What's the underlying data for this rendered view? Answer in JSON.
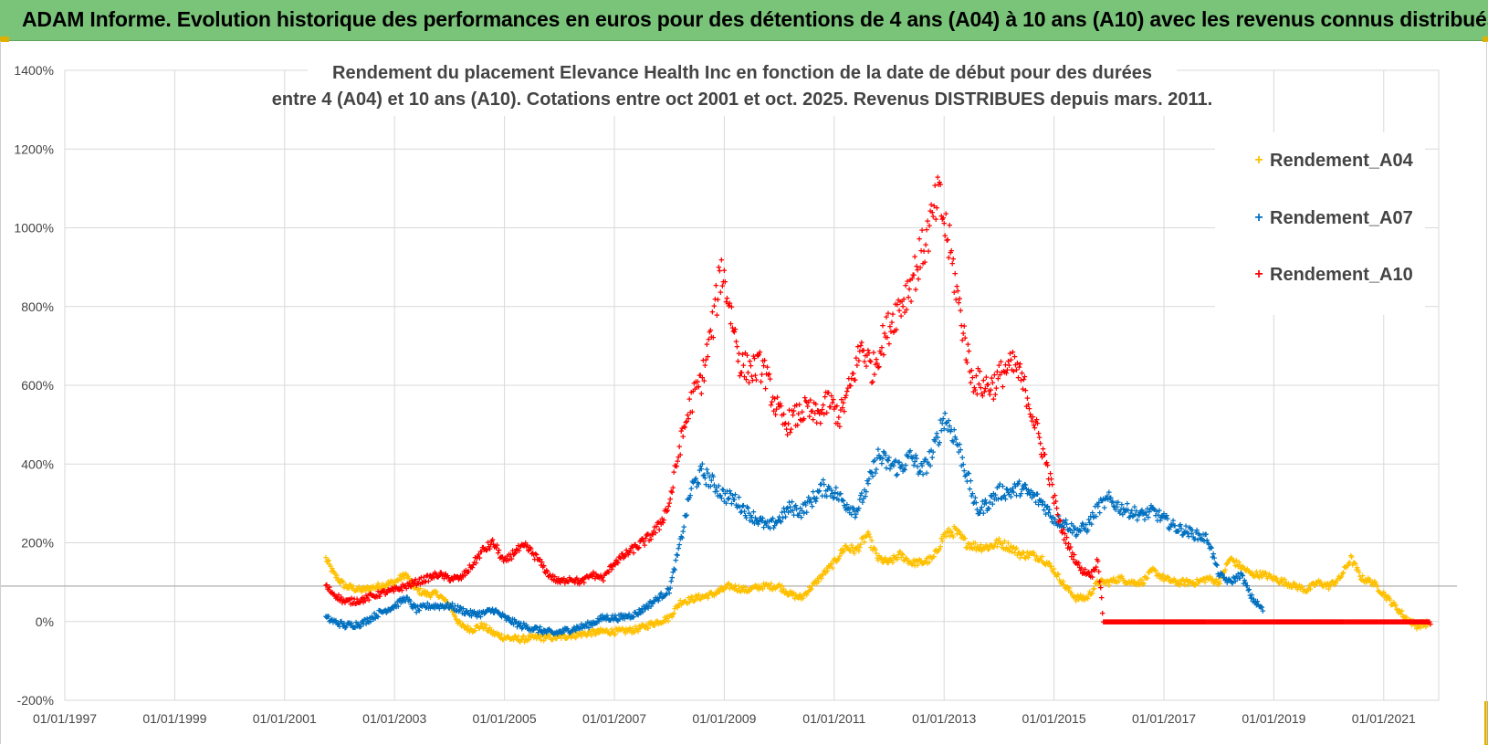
{
  "banner": {
    "title": "ADAM Informe. Evolution historique des performances en euros pour des détentions de 4 ans (A04) à 10 ans (A10) avec les revenus connus distribués"
  },
  "colors": {
    "banner": "#7ac47a",
    "a04": "#ffc000",
    "a07": "#0070c0",
    "a10": "#ff0000",
    "grid": "#d9d9d9",
    "baseline": "#a6a6a6"
  },
  "chart_data": {
    "type": "scatter",
    "title_lines": [
      "Rendement du placement Elevance Health Inc en fonction de la date de début pour des durées",
      "entre 4 (A04) et 10 ans (A10). Cotations entre oct 2001 et oct. 2025. Revenus DISTRIBUES depuis mars. 2011."
    ],
    "xlabel": "",
    "ylabel": "",
    "xlim": [
      1997.0,
      2022.0
    ],
    "ylim": [
      -200,
      1400
    ],
    "ytick_values": [
      -200,
      0,
      200,
      400,
      600,
      800,
      1000,
      1200,
      1400
    ],
    "ytick_labels": [
      "-200%",
      "0%",
      "200%",
      "400%",
      "600%",
      "800%",
      "1000%",
      "1200%",
      "1400%"
    ],
    "xtick_values": [
      1997,
      1999,
      2001,
      2003,
      2005,
      2007,
      2009,
      2011,
      2013,
      2015,
      2017,
      2019,
      2021
    ],
    "xtick_labels": [
      "01/01/1997",
      "01/01/1999",
      "01/01/2001",
      "01/01/2003",
      "01/01/2005",
      "01/01/2007",
      "01/01/2009",
      "01/01/2011",
      "01/01/2013",
      "01/01/2015",
      "01/01/2017",
      "01/01/2019",
      "01/01/2021"
    ],
    "reference_line_value": 90,
    "legend_position": "top-right",
    "series": [
      {
        "name": "Rendement_A04",
        "color": "#ffc000",
        "points": [
          [
            2001.75,
            160
          ],
          [
            2001.9,
            120
          ],
          [
            2002.1,
            90
          ],
          [
            2002.4,
            80
          ],
          [
            2002.7,
            90
          ],
          [
            2003.0,
            100
          ],
          [
            2003.2,
            120
          ],
          [
            2003.4,
            80
          ],
          [
            2003.6,
            70
          ],
          [
            2003.8,
            70
          ],
          [
            2004.0,
            40
          ],
          [
            2004.2,
            -10
          ],
          [
            2004.4,
            -20
          ],
          [
            2004.6,
            -10
          ],
          [
            2004.8,
            -30
          ],
          [
            2005.0,
            -40
          ],
          [
            2005.3,
            -45
          ],
          [
            2005.6,
            -40
          ],
          [
            2005.9,
            -40
          ],
          [
            2006.2,
            -35
          ],
          [
            2006.5,
            -30
          ],
          [
            2006.8,
            -25
          ],
          [
            2007.1,
            -25
          ],
          [
            2007.4,
            -20
          ],
          [
            2007.7,
            -5
          ],
          [
            2008.0,
            10
          ],
          [
            2008.2,
            50
          ],
          [
            2008.5,
            60
          ],
          [
            2008.8,
            70
          ],
          [
            2009.1,
            90
          ],
          [
            2009.4,
            80
          ],
          [
            2009.7,
            90
          ],
          [
            2010.0,
            90
          ],
          [
            2010.2,
            70
          ],
          [
            2010.4,
            60
          ],
          [
            2010.6,
            90
          ],
          [
            2010.8,
            120
          ],
          [
            2011.0,
            150
          ],
          [
            2011.2,
            190
          ],
          [
            2011.4,
            180
          ],
          [
            2011.6,
            220
          ],
          [
            2011.8,
            160
          ],
          [
            2012.0,
            150
          ],
          [
            2012.2,
            170
          ],
          [
            2012.4,
            150
          ],
          [
            2012.6,
            150
          ],
          [
            2012.8,
            160
          ],
          [
            2013.0,
            220
          ],
          [
            2013.2,
            230
          ],
          [
            2013.4,
            200
          ],
          [
            2013.6,
            190
          ],
          [
            2013.8,
            190
          ],
          [
            2014.0,
            200
          ],
          [
            2014.2,
            190
          ],
          [
            2014.4,
            170
          ],
          [
            2014.6,
            170
          ],
          [
            2014.8,
            160
          ],
          [
            2015.0,
            130
          ],
          [
            2015.2,
            90
          ],
          [
            2015.4,
            60
          ],
          [
            2015.6,
            60
          ],
          [
            2015.8,
            100
          ],
          [
            2016.0,
            100
          ],
          [
            2016.2,
            110
          ],
          [
            2016.4,
            100
          ],
          [
            2016.6,
            100
          ],
          [
            2016.8,
            130
          ],
          [
            2017.0,
            110
          ],
          [
            2017.2,
            100
          ],
          [
            2017.4,
            100
          ],
          [
            2017.6,
            100
          ],
          [
            2017.8,
            110
          ],
          [
            2018.0,
            100
          ],
          [
            2018.2,
            160
          ],
          [
            2018.4,
            140
          ],
          [
            2018.6,
            120
          ],
          [
            2018.8,
            120
          ],
          [
            2019.0,
            110
          ],
          [
            2019.2,
            100
          ],
          [
            2019.4,
            90
          ],
          [
            2019.6,
            80
          ],
          [
            2019.8,
            100
          ],
          [
            2020.0,
            90
          ],
          [
            2020.2,
            110
          ],
          [
            2020.4,
            160
          ],
          [
            2020.6,
            110
          ],
          [
            2020.8,
            100
          ],
          [
            2021.0,
            70
          ],
          [
            2021.2,
            40
          ],
          [
            2021.4,
            10
          ],
          [
            2021.6,
            -10
          ],
          [
            2021.8,
            -5
          ]
        ]
      },
      {
        "name": "Rendement_A07",
        "color": "#0070c0",
        "points": [
          [
            2001.75,
            10
          ],
          [
            2001.9,
            0
          ],
          [
            2002.1,
            -10
          ],
          [
            2002.4,
            -5
          ],
          [
            2002.7,
            20
          ],
          [
            2003.0,
            40
          ],
          [
            2003.2,
            60
          ],
          [
            2003.4,
            30
          ],
          [
            2003.6,
            40
          ],
          [
            2003.8,
            40
          ],
          [
            2004.0,
            40
          ],
          [
            2004.2,
            30
          ],
          [
            2004.4,
            20
          ],
          [
            2004.6,
            20
          ],
          [
            2004.8,
            30
          ],
          [
            2005.0,
            10
          ],
          [
            2005.3,
            -10
          ],
          [
            2005.6,
            -20
          ],
          [
            2005.9,
            -30
          ],
          [
            2006.2,
            -20
          ],
          [
            2006.5,
            -10
          ],
          [
            2006.8,
            10
          ],
          [
            2007.1,
            10
          ],
          [
            2007.4,
            20
          ],
          [
            2007.7,
            50
          ],
          [
            2008.0,
            80
          ],
          [
            2008.2,
            200
          ],
          [
            2008.4,
            340
          ],
          [
            2008.6,
            380
          ],
          [
            2008.8,
            350
          ],
          [
            2009.0,
            320
          ],
          [
            2009.2,
            310
          ],
          [
            2009.4,
            280
          ],
          [
            2009.6,
            260
          ],
          [
            2009.8,
            240
          ],
          [
            2010.0,
            260
          ],
          [
            2010.2,
            290
          ],
          [
            2010.4,
            280
          ],
          [
            2010.6,
            310
          ],
          [
            2010.8,
            340
          ],
          [
            2011.0,
            330
          ],
          [
            2011.2,
            300
          ],
          [
            2011.4,
            280
          ],
          [
            2011.6,
            340
          ],
          [
            2011.8,
            420
          ],
          [
            2012.0,
            400
          ],
          [
            2012.2,
            390
          ],
          [
            2012.4,
            420
          ],
          [
            2012.6,
            380
          ],
          [
            2012.8,
            430
          ],
          [
            2013.0,
            520
          ],
          [
            2013.2,
            470
          ],
          [
            2013.4,
            380
          ],
          [
            2013.6,
            280
          ],
          [
            2013.8,
            300
          ],
          [
            2014.0,
            330
          ],
          [
            2014.2,
            330
          ],
          [
            2014.4,
            340
          ],
          [
            2014.6,
            320
          ],
          [
            2014.8,
            300
          ],
          [
            2015.0,
            260
          ],
          [
            2015.2,
            250
          ],
          [
            2015.4,
            230
          ],
          [
            2015.6,
            240
          ],
          [
            2015.8,
            290
          ],
          [
            2016.0,
            310
          ],
          [
            2016.2,
            290
          ],
          [
            2016.4,
            280
          ],
          [
            2016.6,
            270
          ],
          [
            2016.8,
            280
          ],
          [
            2017.0,
            260
          ],
          [
            2017.2,
            240
          ],
          [
            2017.4,
            230
          ],
          [
            2017.6,
            220
          ],
          [
            2017.8,
            210
          ],
          [
            2018.0,
            120
          ],
          [
            2018.2,
            100
          ],
          [
            2018.4,
            120
          ],
          [
            2018.6,
            60
          ],
          [
            2018.8,
            30
          ]
        ]
      },
      {
        "name": "Rendement_A10",
        "color": "#ff0000",
        "points": [
          [
            2001.75,
            90
          ],
          [
            2001.9,
            70
          ],
          [
            2002.1,
            50
          ],
          [
            2002.4,
            55
          ],
          [
            2002.7,
            70
          ],
          [
            2003.0,
            80
          ],
          [
            2003.2,
            90
          ],
          [
            2003.4,
            100
          ],
          [
            2003.6,
            110
          ],
          [
            2003.8,
            120
          ],
          [
            2004.0,
            110
          ],
          [
            2004.2,
            110
          ],
          [
            2004.4,
            140
          ],
          [
            2004.6,
            180
          ],
          [
            2004.8,
            200
          ],
          [
            2005.0,
            150
          ],
          [
            2005.2,
            180
          ],
          [
            2005.4,
            190
          ],
          [
            2005.6,
            160
          ],
          [
            2005.8,
            120
          ],
          [
            2006.0,
            100
          ],
          [
            2006.2,
            110
          ],
          [
            2006.4,
            100
          ],
          [
            2006.6,
            120
          ],
          [
            2006.8,
            110
          ],
          [
            2007.0,
            150
          ],
          [
            2007.2,
            170
          ],
          [
            2007.4,
            190
          ],
          [
            2007.6,
            210
          ],
          [
            2007.8,
            240
          ],
          [
            2008.0,
            300
          ],
          [
            2008.2,
            450
          ],
          [
            2008.4,
            560
          ],
          [
            2008.6,
            620
          ],
          [
            2008.8,
            760
          ],
          [
            2008.95,
            900
          ],
          [
            2009.1,
            800
          ],
          [
            2009.3,
            650
          ],
          [
            2009.5,
            640
          ],
          [
            2009.7,
            650
          ],
          [
            2009.9,
            560
          ],
          [
            2010.1,
            500
          ],
          [
            2010.3,
            520
          ],
          [
            2010.5,
            540
          ],
          [
            2010.7,
            520
          ],
          [
            2010.9,
            560
          ],
          [
            2011.1,
            520
          ],
          [
            2011.3,
            600
          ],
          [
            2011.5,
            700
          ],
          [
            2011.7,
            640
          ],
          [
            2011.9,
            720
          ],
          [
            2012.1,
            780
          ],
          [
            2012.3,
            830
          ],
          [
            2012.5,
            900
          ],
          [
            2012.7,
            980
          ],
          [
            2012.9,
            1080
          ],
          [
            2013.1,
            950
          ],
          [
            2013.3,
            780
          ],
          [
            2013.5,
            620
          ],
          [
            2013.7,
            600
          ],
          [
            2013.9,
            600
          ],
          [
            2014.1,
            640
          ],
          [
            2014.3,
            650
          ],
          [
            2014.5,
            580
          ],
          [
            2014.7,
            480
          ],
          [
            2014.9,
            380
          ],
          [
            2015.1,
            250
          ],
          [
            2015.3,
            180
          ],
          [
            2015.5,
            130
          ],
          [
            2015.7,
            120
          ],
          [
            2015.8,
            160
          ],
          [
            2015.9,
            0
          ],
          [
            2016.5,
            0
          ],
          [
            2017.0,
            0
          ],
          [
            2017.5,
            0
          ],
          [
            2018.0,
            0
          ],
          [
            2018.5,
            0
          ],
          [
            2019.0,
            0
          ],
          [
            2019.5,
            0
          ],
          [
            2020.0,
            0
          ],
          [
            2020.5,
            0
          ],
          [
            2021.0,
            0
          ],
          [
            2021.5,
            0
          ],
          [
            2021.85,
            0
          ]
        ]
      }
    ]
  }
}
